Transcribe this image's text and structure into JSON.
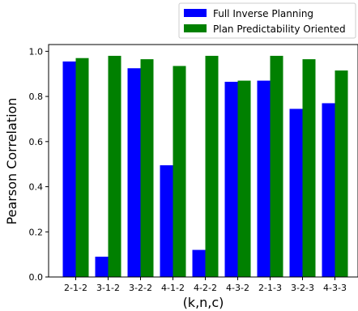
{
  "chart_data": {
    "type": "bar",
    "xlabel": "(k,n,c)",
    "ylabel": "Pearson Correlation",
    "ylim": [
      0,
      1.03
    ],
    "yticks": [
      "0.0",
      "0.2",
      "0.4",
      "0.6",
      "0.8",
      "1.0"
    ],
    "categories": [
      "2-1-2",
      "3-1-2",
      "3-2-2",
      "4-1-2",
      "4-2-2",
      "4-3-2",
      "2-1-3",
      "3-2-3",
      "4-3-3"
    ],
    "series": [
      {
        "name": "Full Inverse Planning",
        "color": "#0000ff",
        "values": [
          0.955,
          0.09,
          0.925,
          0.495,
          0.12,
          0.865,
          0.87,
          0.745,
          0.77
        ]
      },
      {
        "name": "Plan Predictability Oriented",
        "color": "#008000",
        "values": [
          0.97,
          0.98,
          0.965,
          0.935,
          0.98,
          0.87,
          0.98,
          0.965,
          0.915
        ]
      }
    ],
    "legend_position": "top-right",
    "grid": false
  }
}
